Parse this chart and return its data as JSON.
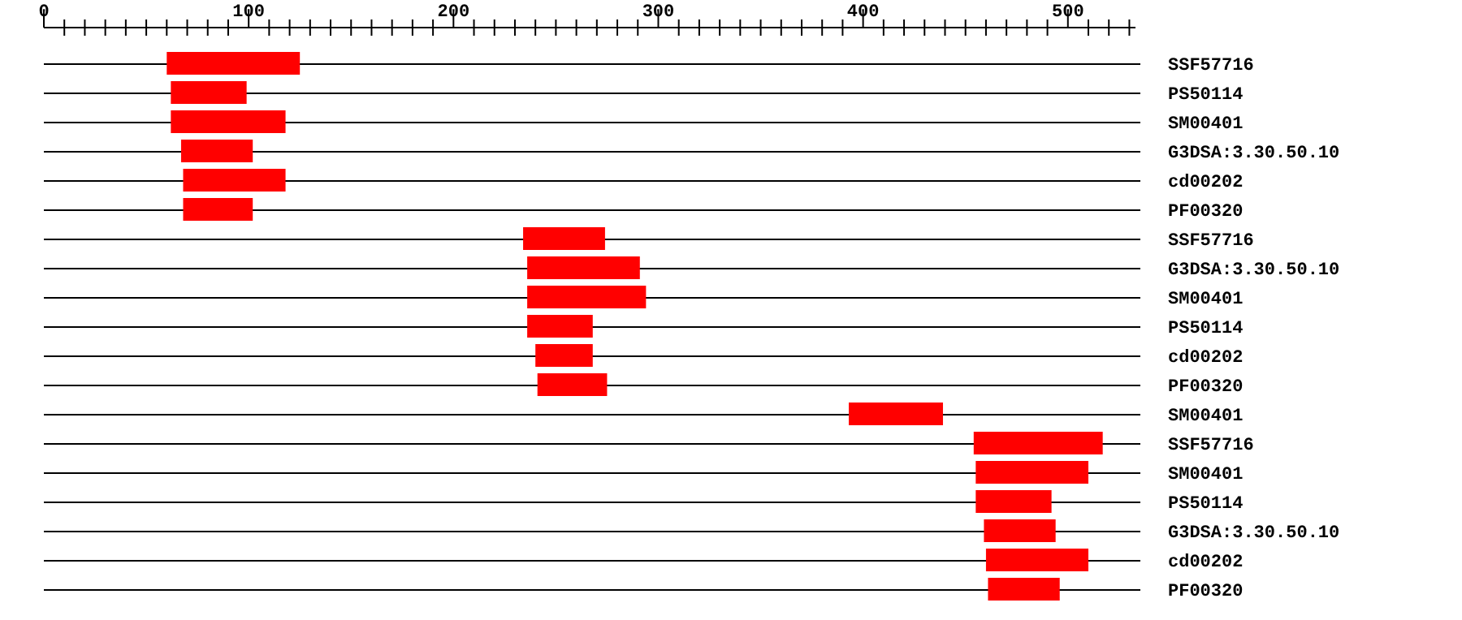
{
  "chart_data": {
    "type": "bar",
    "orientation": "horizontal",
    "grid": "y",
    "categories": [
      "SSF57716",
      "PS50114",
      "SM00401",
      "G3DSA:3.30.50.10",
      "cd00202",
      "PF00320",
      "SSF57716",
      "G3DSA:3.30.50.10",
      "SM00401",
      "PS50114",
      "cd00202",
      "PF00320",
      "SM00401",
      "SSF57716",
      "SM00401",
      "PS50114",
      "G3DSA:3.30.50.10",
      "cd00202",
      "PF00320"
    ],
    "base": [
      60,
      62,
      62,
      67,
      68,
      68,
      234,
      236,
      236,
      236,
      240,
      241,
      393,
      454,
      455,
      455,
      459,
      460,
      461
    ],
    "values": [
      65,
      37,
      56,
      35,
      50,
      34,
      40,
      55,
      58,
      32,
      28,
      34,
      46,
      63,
      55,
      37,
      35,
      50,
      35
    ],
    "color": "#ff0000",
    "xlim": [
      0,
      533
    ],
    "xticks": [
      0,
      {
        "value": 10,
        "label": null
      },
      {
        "value": 20,
        "label": null
      },
      {
        "value": 30,
        "label": null
      },
      {
        "value": 40,
        "label": null
      },
      {
        "value": 50,
        "label": null
      },
      {
        "value": 60,
        "label": null
      },
      {
        "value": 70,
        "label": null
      },
      {
        "value": 80,
        "label": null
      },
      {
        "value": 90,
        "label": null
      },
      100,
      {
        "value": 110,
        "label": null
      },
      {
        "value": 120,
        "label": null
      },
      {
        "value": 130,
        "label": null
      },
      {
        "value": 140,
        "label": null
      },
      {
        "value": 150,
        "label": null
      },
      {
        "value": 160,
        "label": null
      },
      {
        "value": 170,
        "label": null
      },
      {
        "value": 180,
        "label": null
      },
      {
        "value": 190,
        "label": null
      },
      200,
      {
        "value": 210,
        "label": null
      },
      {
        "value": 220,
        "label": null
      },
      {
        "value": 230,
        "label": null
      },
      {
        "value": 240,
        "label": null
      },
      {
        "value": 250,
        "label": null
      },
      {
        "value": 260,
        "label": null
      },
      {
        "value": 270,
        "label": null
      },
      {
        "value": 280,
        "label": null
      },
      {
        "value": 290,
        "label": null
      },
      300,
      {
        "value": 310,
        "label": null
      },
      {
        "value": 320,
        "label": null
      },
      {
        "value": 330,
        "label": null
      },
      {
        "value": 340,
        "label": null
      },
      {
        "value": 350,
        "label": null
      },
      {
        "value": 360,
        "label": null
      },
      {
        "value": 370,
        "label": null
      },
      {
        "value": 380,
        "label": null
      },
      {
        "value": 390,
        "label": null
      },
      400,
      {
        "value": 410,
        "label": null
      },
      {
        "value": 420,
        "label": null
      },
      {
        "value": 430,
        "label": null
      },
      {
        "value": 440,
        "label": null
      },
      {
        "value": 450,
        "label": null
      },
      {
        "value": 460,
        "label": null
      },
      {
        "value": 470,
        "label": null
      },
      {
        "value": 480,
        "label": null
      },
      {
        "value": 490,
        "label": null
      },
      500,
      {
        "value": 510,
        "label": null
      },
      {
        "value": 520,
        "label": null
      },
      {
        "value": 530,
        "label": null
      }
    ]
  }
}
